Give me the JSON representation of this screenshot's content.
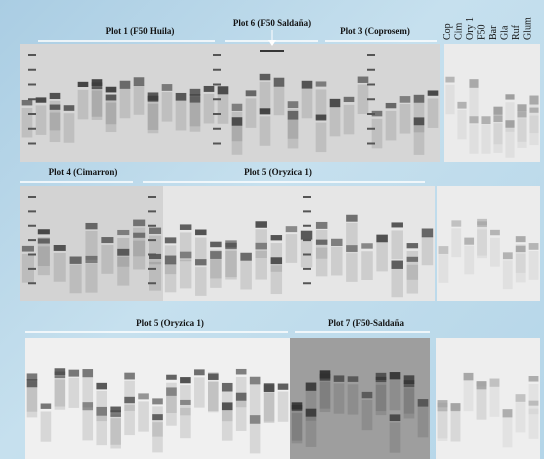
{
  "rows": [
    {
      "titles": [
        "Plot 1  (F50 Huila)",
        "Plot 6 (F50 Saldaña)",
        "Plot 3 (Coprosem)"
      ],
      "references": [
        "Cop",
        "Cim",
        "Ory 1",
        "F50",
        "Bar",
        "Gla",
        "Ruf",
        "Glum"
      ]
    },
    {
      "titles": [
        "Plot 4 (Cimarron)",
        "Plot  5 (Oryzica 1)"
      ]
    },
    {
      "titles": [
        "Plot 5 (Oryzica 1)",
        "Plot 7 (F50-Saldaña"
      ]
    }
  ]
}
